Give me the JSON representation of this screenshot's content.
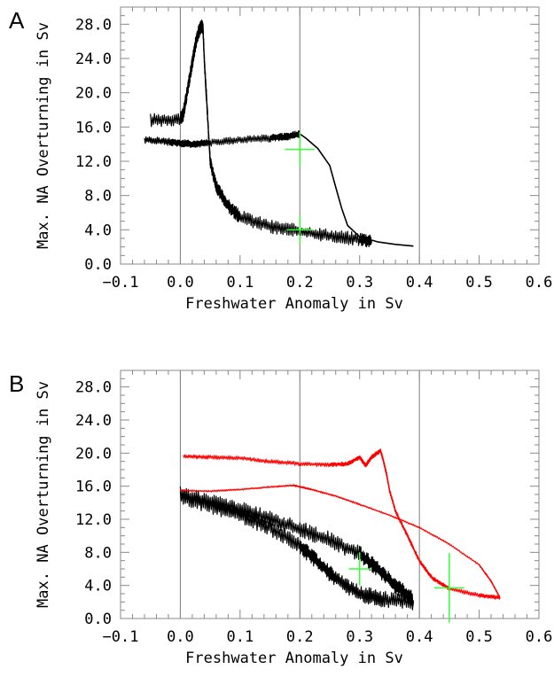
{
  "chart_data": [
    {
      "panel_label": "A",
      "type": "line",
      "xlabel": "Freshwater Anomaly in Sv",
      "ylabel": "Max. NA Overturning in Sv",
      "xlim": [
        -0.1,
        0.6
      ],
      "ylim": [
        0,
        30
      ],
      "xticks": [
        -0.1,
        0.0,
        0.1,
        0.2,
        0.3,
        0.4,
        0.5,
        0.6
      ],
      "xtick_labels": [
        "−0.1",
        "0.0",
        "0.1",
        "0.2",
        "0.3",
        "0.4",
        "0.5",
        "0.6"
      ],
      "yticks": [
        0,
        4,
        8,
        12,
        16,
        20,
        24,
        28
      ],
      "ytick_labels": [
        "0.0",
        "4.0",
        "8.0",
        "12.0",
        "16.0",
        "20.0",
        "24.0",
        "28.0"
      ],
      "grid_x": [
        0.0,
        0.2,
        0.4
      ],
      "series": [
        {
          "color": "#000000",
          "noise": 0.8,
          "values": [
            [
              -0.05,
              16.8
            ],
            [
              0.0,
              16.9
            ],
            [
              0.005,
              17.5
            ],
            [
              0.01,
              19.5
            ],
            [
              0.015,
              21.5
            ],
            [
              0.02,
              23.5
            ],
            [
              0.025,
              25.5
            ],
            [
              0.03,
              27.0
            ],
            [
              0.035,
              27.8
            ],
            [
              0.038,
              27.5
            ],
            [
              0.04,
              24.0
            ],
            [
              0.045,
              18.0
            ],
            [
              0.05,
              12.0
            ],
            [
              0.06,
              9.0
            ],
            [
              0.08,
              6.8
            ],
            [
              0.1,
              5.5
            ],
            [
              0.15,
              4.4
            ],
            [
              0.2,
              3.8
            ],
            [
              0.25,
              3.3
            ],
            [
              0.3,
              2.9
            ],
            [
              0.32,
              2.7
            ]
          ]
        },
        {
          "color": "#000000",
          "noise": 0.45,
          "values": [
            [
              -0.06,
              14.5
            ],
            [
              -0.02,
              14.3
            ],
            [
              0.0,
              14.1
            ],
            [
              0.02,
              14.0
            ],
            [
              0.05,
              14.2
            ],
            [
              0.1,
              14.5
            ],
            [
              0.15,
              14.7
            ],
            [
              0.18,
              14.9
            ],
            [
              0.2,
              15.2
            ]
          ]
        },
        {
          "color": "#000000",
          "noise": 0.0,
          "values": [
            [
              0.2,
              15.2
            ],
            [
              0.21,
              14.7
            ],
            [
              0.23,
              13.5
            ],
            [
              0.25,
              11.5
            ],
            [
              0.26,
              9.0
            ],
            [
              0.27,
              6.5
            ],
            [
              0.28,
              4.5
            ],
            [
              0.3,
              3.2
            ],
            [
              0.33,
              2.6
            ],
            [
              0.36,
              2.3
            ],
            [
              0.39,
              2.1
            ]
          ]
        }
      ],
      "markers": [
        {
          "color": "#33ff33",
          "x": 0.2,
          "y": 13.4,
          "dx": 0.025,
          "dy": 2.0
        },
        {
          "color": "#33ff33",
          "x": 0.2,
          "y": 4.0,
          "dx": 0.022,
          "dy": 1.7
        }
      ]
    },
    {
      "panel_label": "B",
      "type": "line",
      "xlabel": "Freshwater Anomaly in Sv",
      "ylabel": "Max. NA Overturning in Sv",
      "xlim": [
        -0.1,
        0.6
      ],
      "ylim": [
        0,
        30
      ],
      "xticks": [
        -0.1,
        0.0,
        0.1,
        0.2,
        0.3,
        0.4,
        0.5,
        0.6
      ],
      "xtick_labels": [
        "−0.1",
        "0.0",
        "0.1",
        "0.2",
        "0.3",
        "0.4",
        "0.5",
        "0.6"
      ],
      "yticks": [
        0,
        4,
        8,
        12,
        16,
        20,
        24,
        28
      ],
      "ytick_labels": [
        "0.0",
        "4.0",
        "8.0",
        "12.0",
        "16.0",
        "20.0",
        "24.0",
        "28.0"
      ],
      "grid_x": [
        0.0,
        0.2,
        0.4
      ],
      "series": [
        {
          "color": "#000000",
          "noise": 1.0,
          "values": [
            [
              0.0,
              15.0
            ],
            [
              0.05,
              14.1
            ],
            [
              0.1,
              13.2
            ],
            [
              0.15,
              12.0
            ],
            [
              0.2,
              10.8
            ],
            [
              0.25,
              9.5
            ],
            [
              0.3,
              7.8
            ],
            [
              0.33,
              6.0
            ],
            [
              0.36,
              4.0
            ],
            [
              0.39,
              2.2
            ]
          ]
        },
        {
          "color": "#000000",
          "noise": 1.0,
          "values": [
            [
              0.0,
              14.8
            ],
            [
              0.05,
              13.7
            ],
            [
              0.1,
              12.5
            ],
            [
              0.15,
              11.0
            ],
            [
              0.2,
              8.8
            ],
            [
              0.23,
              6.8
            ],
            [
              0.26,
              4.8
            ],
            [
              0.3,
              3.0
            ],
            [
              0.34,
              2.3
            ],
            [
              0.39,
              2.0
            ]
          ]
        },
        {
          "color": "#ff0000",
          "noise": 0.25,
          "values": [
            [
              0.005,
              19.6
            ],
            [
              0.05,
              19.5
            ],
            [
              0.1,
              19.4
            ],
            [
              0.15,
              19.0
            ],
            [
              0.2,
              18.7
            ],
            [
              0.25,
              18.6
            ],
            [
              0.28,
              18.7
            ],
            [
              0.3,
              19.5
            ],
            [
              0.31,
              18.5
            ],
            [
              0.32,
              19.5
            ],
            [
              0.335,
              20.3
            ],
            [
              0.34,
              19.0
            ],
            [
              0.345,
              17.5
            ],
            [
              0.35,
              15.5
            ],
            [
              0.36,
              13.0
            ],
            [
              0.38,
              10.0
            ],
            [
              0.4,
              7.0
            ],
            [
              0.42,
              5.0
            ],
            [
              0.45,
              3.6
            ],
            [
              0.5,
              2.8
            ],
            [
              0.535,
              2.5
            ]
          ]
        },
        {
          "color": "#ff0000",
          "noise": 0.1,
          "values": [
            [
              0.0,
              15.5
            ],
            [
              0.05,
              15.4
            ],
            [
              0.1,
              15.6
            ],
            [
              0.15,
              15.9
            ],
            [
              0.19,
              16.1
            ],
            [
              0.22,
              15.6
            ],
            [
              0.26,
              14.8
            ],
            [
              0.3,
              13.8
            ],
            [
              0.35,
              12.5
            ],
            [
              0.4,
              11.0
            ],
            [
              0.45,
              9.0
            ],
            [
              0.5,
              6.5
            ],
            [
              0.52,
              4.5
            ],
            [
              0.535,
              2.5
            ]
          ]
        }
      ],
      "markers": [
        {
          "color": "#33ff33",
          "x": 0.3,
          "y": 6.0,
          "dx": 0.018,
          "dy": 2.0
        },
        {
          "color": "#33ff33",
          "x": 0.45,
          "y": 3.7,
          "dx": 0.025,
          "dy": 4.2
        }
      ]
    }
  ]
}
